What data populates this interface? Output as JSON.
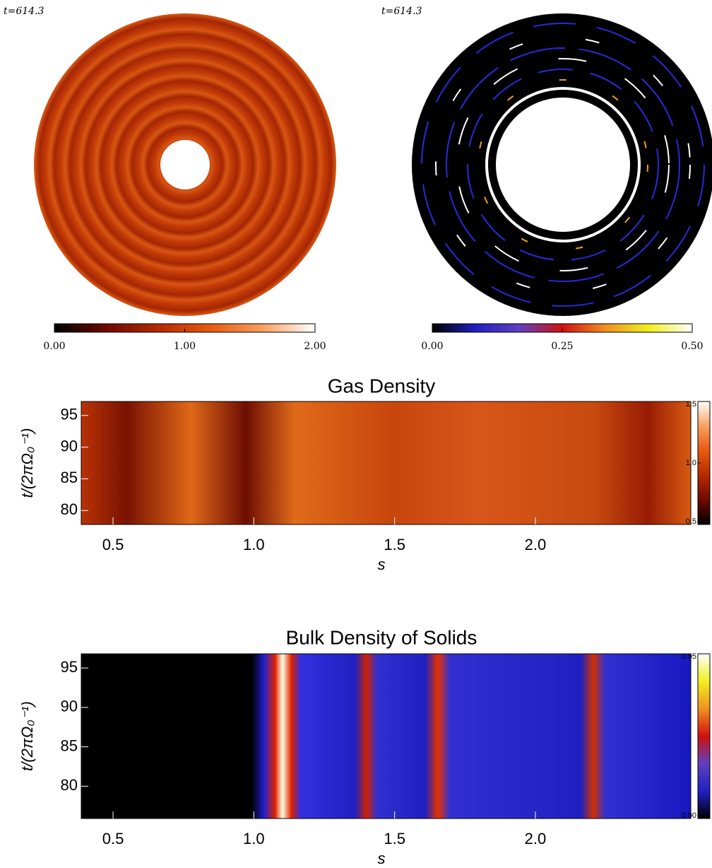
{
  "chart_data": [
    {
      "type": "polar-heatmap",
      "label": "t=614.3",
      "colorbar": {
        "colors": [
          "#000000",
          "#6e0a00",
          "#b52a00",
          "#e85a10",
          "#f8a060",
          "#ffffff"
        ],
        "lim": [
          0,
          2
        ],
        "ticks": [
          {
            "value": 0,
            "label": "0.00"
          },
          {
            "value": 1,
            "label": "1.00"
          },
          {
            "value": 2,
            "label": "2.00"
          }
        ]
      }
    },
    {
      "type": "polar-heatmap",
      "label": "t=614.3",
      "colorbar": {
        "colors": [
          "#000000",
          "#2020c0",
          "#6040c0",
          "#d01010",
          "#f09020",
          "#f0f020",
          "#ffffff"
        ],
        "lim": [
          0,
          0.5
        ],
        "ticks": [
          {
            "value": 0,
            "label": "0.00"
          },
          {
            "value": 0.25,
            "label": "0.25"
          },
          {
            "value": 0.5,
            "label": "0.50"
          }
        ]
      }
    },
    {
      "type": "heatmap",
      "title": "Gas Density",
      "x_label": "s",
      "y_label": "t/(2πΩ₀⁻¹)",
      "xlim": [
        0.387,
        2.552
      ],
      "ylim": [
        77.8,
        97.2
      ],
      "xticks": [
        0.5,
        {
          "value": 1,
          "label": "1.0"
        },
        1.5,
        {
          "value": 2,
          "label": "2.0"
        }
      ],
      "yticks": [
        80,
        85,
        90,
        95
      ],
      "colorbar": {
        "colors": [
          "#000000",
          "#6e0a00",
          "#b52a00",
          "#e85a10",
          "#f8a060",
          "#ffffff"
        ],
        "lim": [
          0.5,
          1.5
        ],
        "ticks": [
          0.5,
          {
            "value": 1,
            "label": "1.0"
          },
          1.5
        ]
      }
    },
    {
      "type": "heatmap",
      "title": "Bulk Density of Solids",
      "x_label": "s",
      "y_label": "t/(2πΩ₀⁻¹)",
      "xlim": [
        0.387,
        2.552
      ],
      "ylim": [
        75.9,
        96.8
      ],
      "xticks": [
        0.5,
        {
          "value": 1,
          "label": "1.0"
        },
        1.5,
        {
          "value": 2,
          "label": "2.0"
        }
      ],
      "yticks": [
        80,
        85,
        90,
        95
      ],
      "colorbar": {
        "colors": [
          "#000000",
          "#2020c0",
          "#6040c0",
          "#d01010",
          "#f09020",
          "#f0f020",
          "#ffffff"
        ],
        "lim": [
          0,
          0.05
        ],
        "ticks": [
          {
            "value": 0,
            "label": "0.00"
          },
          {
            "value": 0.05,
            "label": "0.05"
          }
        ]
      }
    }
  ]
}
